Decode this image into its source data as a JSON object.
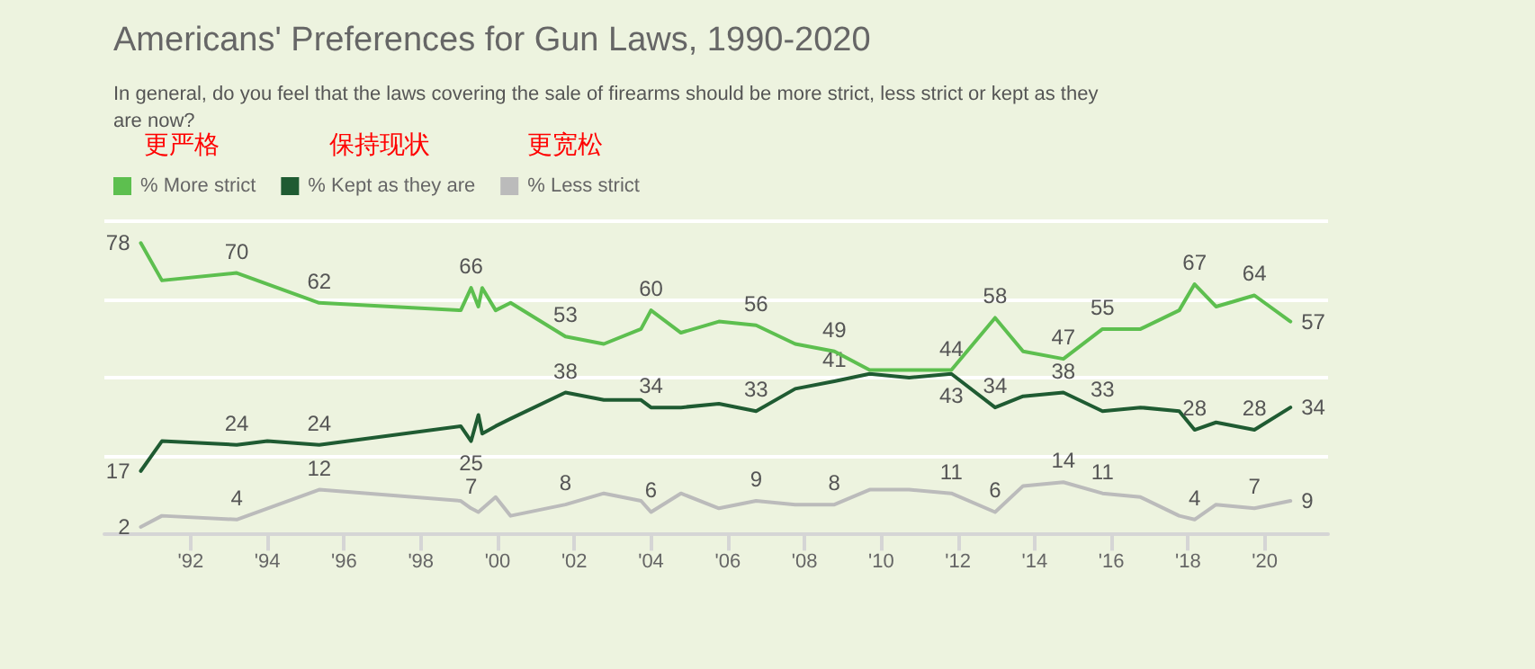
{
  "chart_data": {
    "type": "line",
    "title": "Americans' Preferences for Gun Laws, 1990-2020",
    "subtitle": "In general, do you feel that the laws covering the sale of firearms should be more strict, less strict or kept as they are now?",
    "annotations": [
      "更严格",
      "保持现状",
      "更宽松"
    ],
    "legend": "top left",
    "marker": "none",
    "grid": "y",
    "tick_labels": "x",
    "xlim": [
      1989.75,
      2021.65
    ],
    "xticks": [
      {
        "value": 1992,
        "label": "'92"
      },
      {
        "value": 1994,
        "label": "'94"
      },
      {
        "value": 1996,
        "label": "'96"
      },
      {
        "value": 1998,
        "label": "'98"
      },
      {
        "value": 2000,
        "label": "'00"
      },
      {
        "value": 2002,
        "label": "'02"
      },
      {
        "value": 2004,
        "label": "'04"
      },
      {
        "value": 2006,
        "label": "'06"
      },
      {
        "value": 2008,
        "label": "'08"
      },
      {
        "value": 2010,
        "label": "'10"
      },
      {
        "value": 2012,
        "label": "'12"
      },
      {
        "value": 2014,
        "label": "'14"
      },
      {
        "value": 2016,
        "label": "'16"
      },
      {
        "value": 2018,
        "label": "'18"
      },
      {
        "value": 2020,
        "label": "'20"
      }
    ],
    "ylim": [
      0,
      84
    ],
    "yticks": [
      {
        "value": 0,
        "label": null
      },
      {
        "value": 21,
        "label": null
      },
      {
        "value": 42,
        "label": null
      },
      {
        "value": 63,
        "label": null
      },
      {
        "value": 84,
        "label": null
      }
    ],
    "series": [
      {
        "name": "% More strict",
        "color": "#5dbf4f",
        "x": [
          1990.7,
          1991.25,
          1993.2,
          1995.35,
          1999.04,
          1999.31,
          1999.5,
          1999.6,
          1999.95,
          2000.34,
          2001.77,
          2002.77,
          2003.74,
          2004.0,
          2004.78,
          2005.77,
          2006.74,
          2007.76,
          2008.78,
          2009.7,
          2010.73,
          2011.83,
          2012.97,
          2013.7,
          2014.75,
          2015.77,
          2016.76,
          2017.77,
          2018.17,
          2018.73,
          2019.73,
          2020.67
        ],
        "values": [
          78,
          68,
          70,
          62,
          60,
          66,
          61,
          66,
          60,
          62,
          53,
          51,
          55,
          60,
          54,
          57,
          56,
          51,
          49,
          44,
          44,
          44,
          58,
          49,
          47,
          55,
          55,
          60,
          67,
          61,
          64,
          57
        ],
        "value_labels": [
          "78",
          null,
          "70",
          "62",
          null,
          "66",
          null,
          null,
          null,
          null,
          "53",
          null,
          null,
          "60",
          null,
          null,
          "56",
          null,
          "49",
          null,
          null,
          "44",
          "58",
          null,
          "47",
          "55",
          null,
          null,
          "67",
          null,
          "64",
          "57"
        ]
      },
      {
        "name": "% Kept as they are",
        "color": "#1f5b32",
        "x": [
          1990.7,
          1991.25,
          1993.2,
          1994.0,
          1995.35,
          1999.04,
          1999.31,
          1999.5,
          1999.6,
          1999.95,
          2000.34,
          2001.77,
          2002.77,
          2003.74,
          2004.0,
          2004.78,
          2005.77,
          2006.74,
          2007.76,
          2008.78,
          2009.7,
          2010.73,
          2011.83,
          2012.97,
          2013.7,
          2014.75,
          2015.77,
          2016.76,
          2017.77,
          2018.17,
          2018.73,
          2019.73,
          2020.67
        ],
        "values": [
          17,
          25,
          24,
          25,
          24,
          29,
          25,
          32,
          27,
          29,
          31,
          38,
          36,
          36,
          34,
          34,
          35,
          33,
          39,
          41,
          43,
          42,
          43,
          34,
          37,
          38,
          33,
          34,
          33,
          28,
          30,
          28,
          34
        ],
        "value_labels": [
          "17",
          null,
          "24",
          null,
          "24",
          null,
          "25",
          null,
          null,
          null,
          null,
          "38",
          null,
          null,
          "34",
          null,
          null,
          "33",
          null,
          "41",
          null,
          null,
          "43",
          "34",
          null,
          "38",
          "33",
          null,
          null,
          "28",
          null,
          "28",
          "34"
        ]
      },
      {
        "name": "% Less strict",
        "color": "#bbbbbb",
        "x": [
          1990.7,
          1991.25,
          1993.2,
          1995.35,
          1999.04,
          1999.31,
          1999.5,
          1999.95,
          2000.34,
          2001.77,
          2002.77,
          2003.74,
          2004.0,
          2004.78,
          2005.77,
          2006.74,
          2007.76,
          2008.78,
          2009.7,
          2010.73,
          2011.83,
          2012.97,
          2013.7,
          2014.75,
          2015.77,
          2016.76,
          2017.77,
          2018.17,
          2018.73,
          2019.73,
          2020.67
        ],
        "values": [
          2,
          5,
          4,
          12,
          9,
          7,
          6,
          10,
          5,
          8,
          11,
          9,
          6,
          11,
          7,
          9,
          8,
          8,
          12,
          12,
          11,
          6,
          13,
          14,
          11,
          10,
          5,
          4,
          8,
          7,
          9
        ],
        "value_labels": [
          "2",
          null,
          "4",
          "12",
          null,
          "7",
          null,
          null,
          null,
          "8",
          null,
          null,
          "6",
          null,
          null,
          "9",
          null,
          "8",
          null,
          null,
          "11",
          "6",
          null,
          "14",
          "11",
          null,
          null,
          "4",
          null,
          "7",
          "9"
        ]
      }
    ]
  }
}
